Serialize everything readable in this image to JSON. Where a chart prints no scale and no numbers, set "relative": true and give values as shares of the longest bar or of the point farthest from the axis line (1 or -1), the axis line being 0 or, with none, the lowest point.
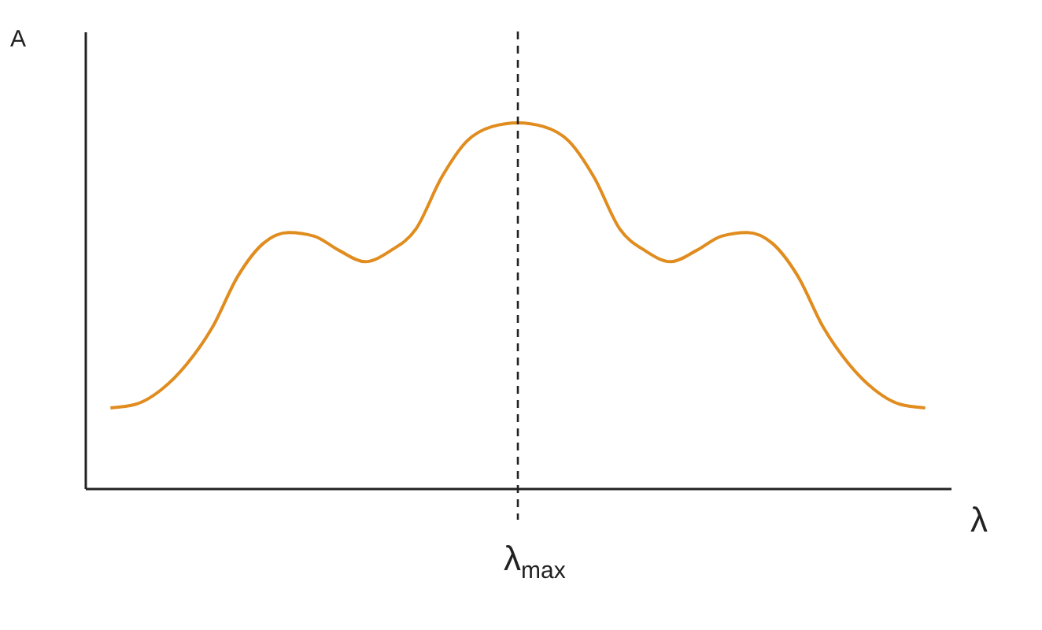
{
  "chart_data": {
    "type": "line",
    "relative": true,
    "xlabel": "λ",
    "ylabel": "A",
    "categories": [
      null,
      null,
      null,
      null,
      null,
      null,
      null,
      null,
      null,
      null,
      null,
      null,
      null,
      null,
      null,
      null,
      null,
      null,
      null,
      null,
      null,
      null,
      null,
      null,
      null,
      null,
      null,
      null,
      null,
      null,
      null,
      null,
      null
    ],
    "series": [
      {
        "color": "#e08c1e",
        "values": [
          0.22,
          0.23,
          0.27,
          0.34,
          0.44,
          0.58,
          0.67,
          0.7,
          0.69,
          0.65,
          0.62,
          0.65,
          0.71,
          0.85,
          0.95,
          0.99,
          1,
          0.99,
          0.95,
          0.85,
          0.71,
          0.65,
          0.62,
          0.65,
          0.69,
          0.7,
          0.67,
          0.58,
          0.44,
          0.34,
          0.27,
          0.23,
          0.22
        ]
      }
    ],
    "ref_lines": [
      {
        "axis": "x",
        "label": "λ$_{max}$",
        "line_style": "dashed"
      }
    ],
    "marker": "none",
    "line_style": "solid"
  }
}
